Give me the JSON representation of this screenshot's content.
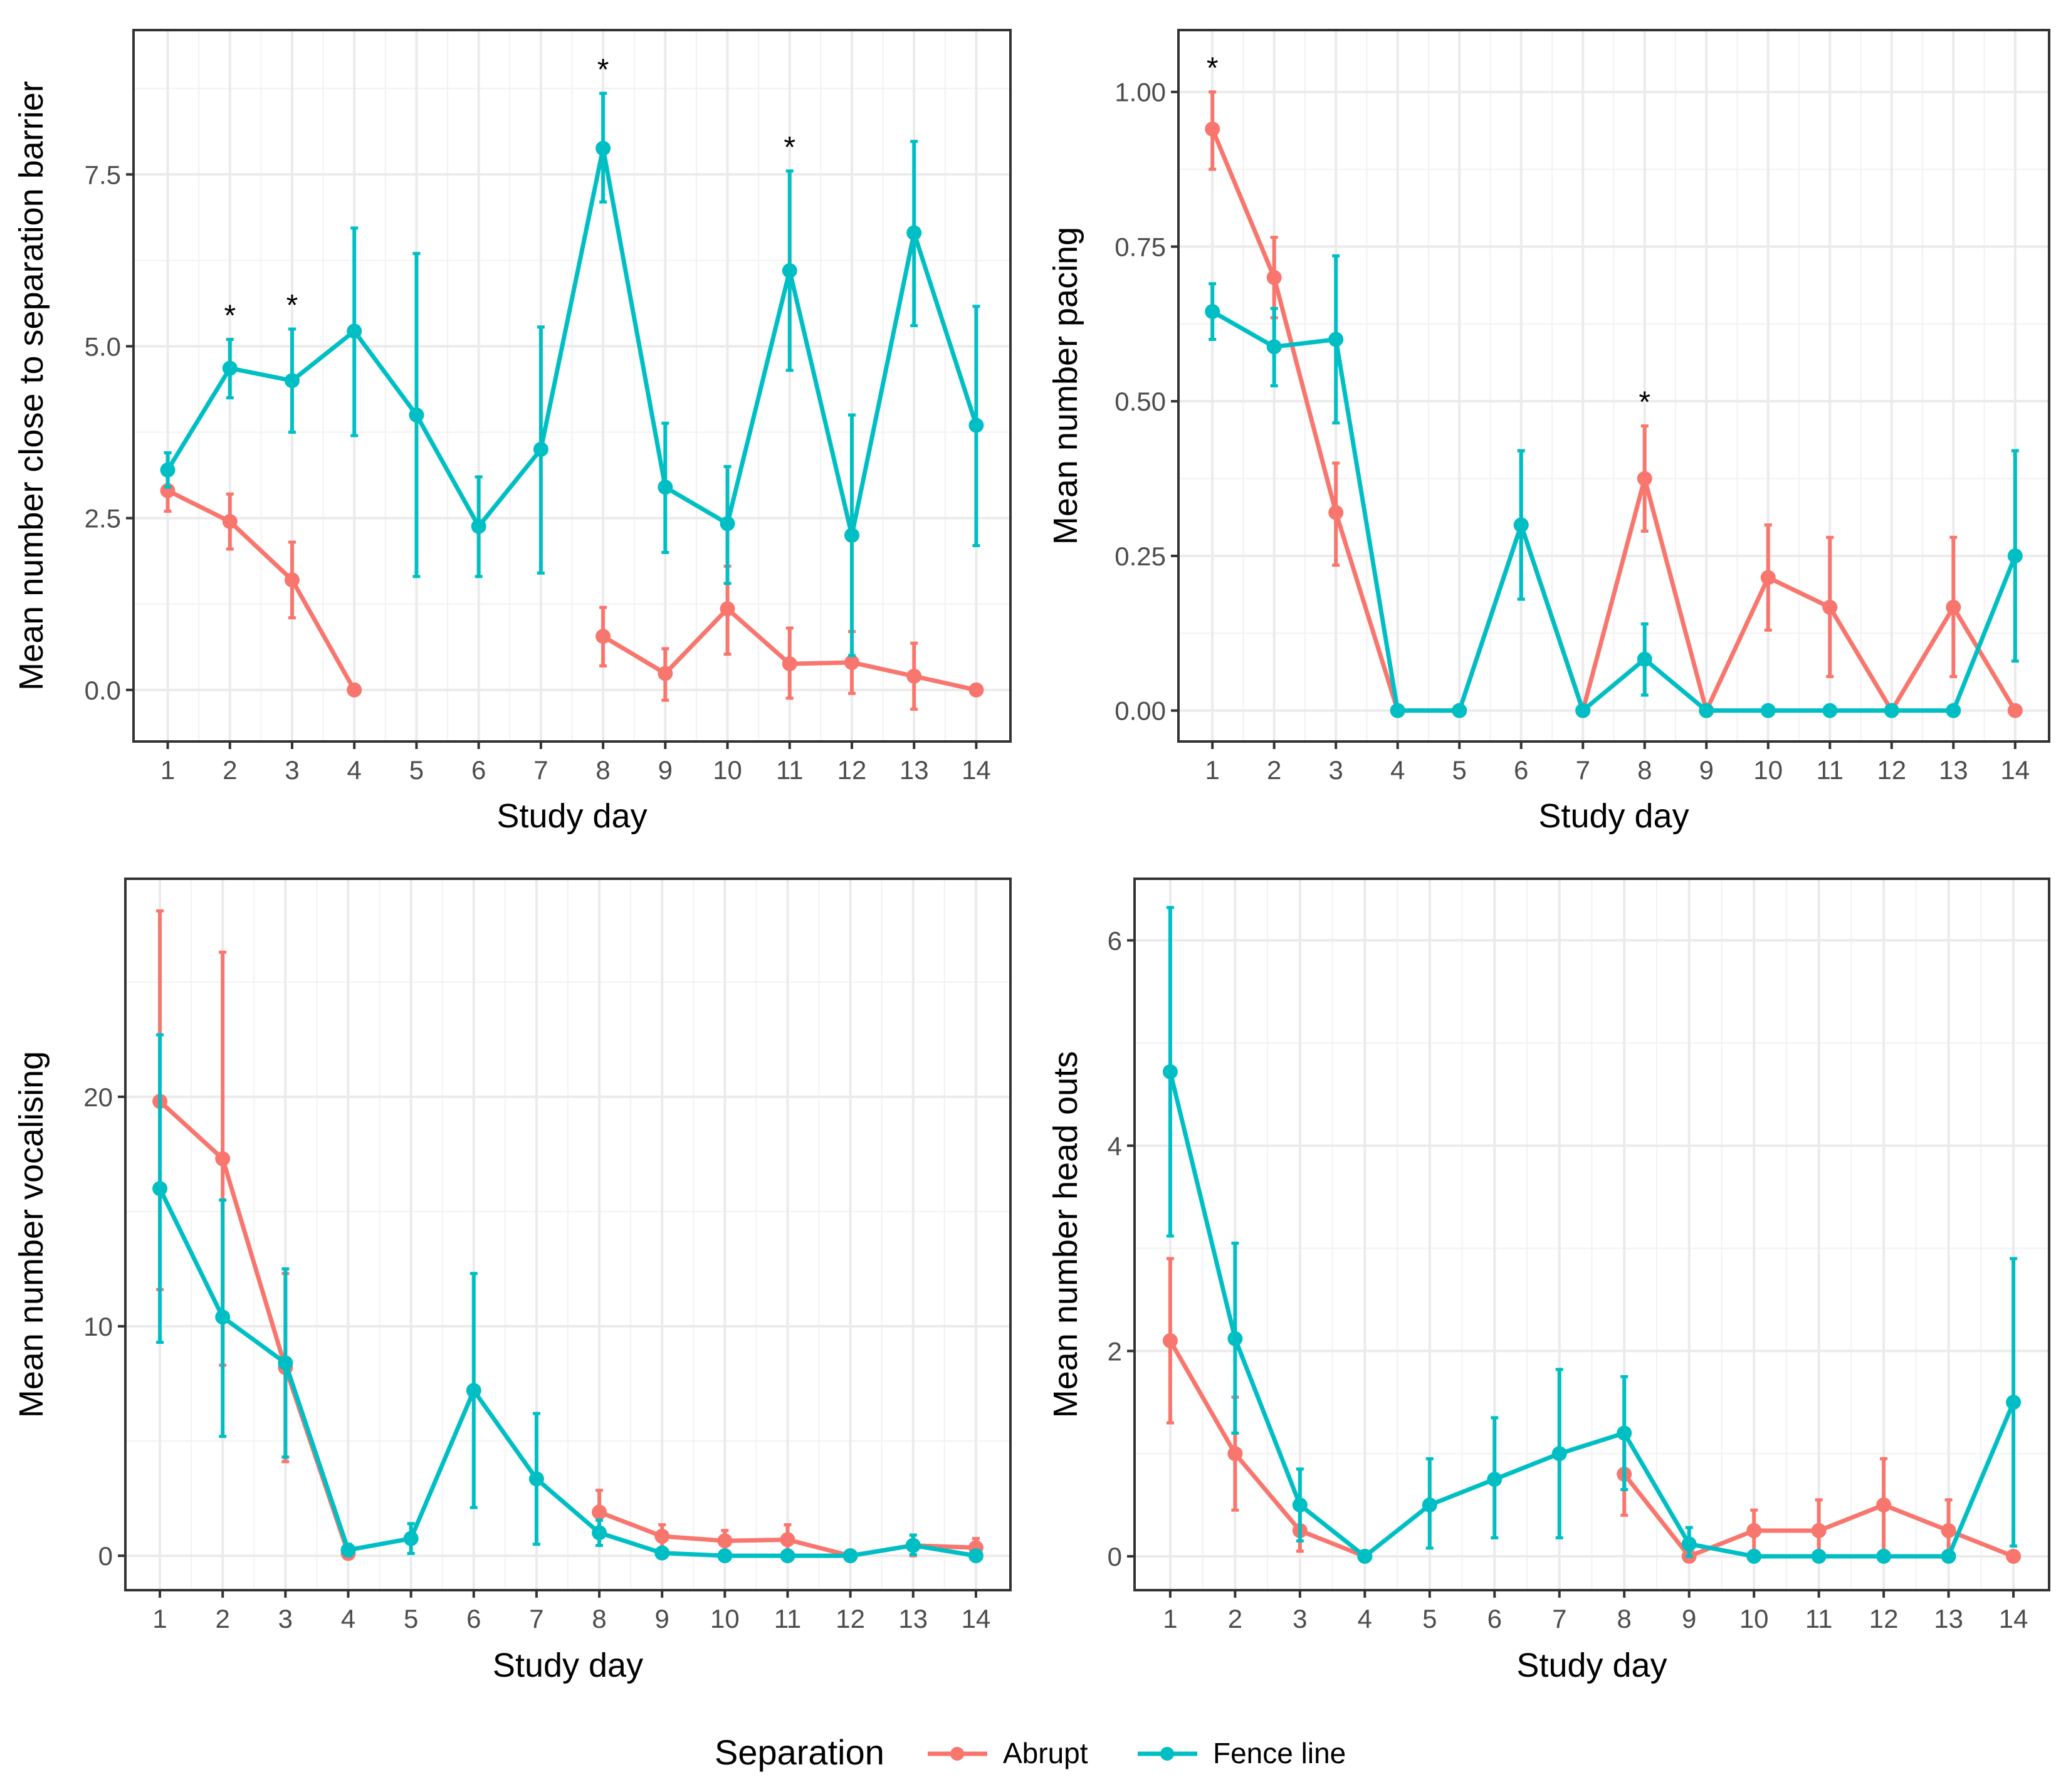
{
  "legend": {
    "title": "Separation",
    "items": [
      {
        "label": "Abrupt",
        "color": "#F8766D"
      },
      {
        "label": "Fence line",
        "color": "#00BFC4"
      }
    ]
  },
  "chart_data": [
    {
      "type": "line",
      "xlabel": "Study day",
      "ylabel": "Mean number close to separation barrier",
      "x": [
        1,
        2,
        3,
        4,
        5,
        6,
        7,
        8,
        9,
        10,
        11,
        12,
        13,
        14
      ],
      "xlim": [
        0.45,
        14.55
      ],
      "ylim": [
        -0.75,
        9.6
      ],
      "yticks": [
        0.0,
        2.5,
        5.0,
        7.5
      ],
      "ytick_labels": [
        "0.0",
        "2.5",
        "5.0",
        "7.5"
      ],
      "minor_yticks": [
        1.25,
        3.75,
        6.25,
        8.75
      ],
      "significance_days": [
        2,
        3,
        8,
        11
      ],
      "series": [
        {
          "name": "Abrupt",
          "color": "#F8766D",
          "values": [
            2.9,
            2.45,
            1.6,
            0.0,
            null,
            null,
            null,
            0.78,
            0.24,
            1.18,
            0.38,
            0.4,
            0.2,
            0.0
          ],
          "lower": [
            2.6,
            2.05,
            1.05,
            0.0,
            null,
            null,
            null,
            0.35,
            -0.15,
            0.52,
            -0.12,
            -0.05,
            -0.28,
            0.0
          ],
          "upper": [
            3.15,
            2.85,
            2.15,
            0.0,
            null,
            null,
            null,
            1.2,
            0.6,
            1.8,
            0.9,
            0.85,
            0.68,
            0.0
          ]
        },
        {
          "name": "Fence line",
          "color": "#00BFC4",
          "values": [
            3.2,
            4.68,
            4.5,
            5.22,
            4.0,
            2.38,
            3.5,
            7.88,
            2.95,
            2.42,
            6.1,
            2.25,
            6.65,
            3.85
          ],
          "lower": [
            2.95,
            4.25,
            3.75,
            3.7,
            1.65,
            1.65,
            1.7,
            7.1,
            2.0,
            1.55,
            4.65,
            0.5,
            5.3,
            2.1
          ],
          "upper": [
            3.45,
            5.1,
            5.25,
            6.72,
            6.35,
            3.1,
            5.28,
            8.68,
            3.88,
            3.25,
            7.55,
            4.0,
            7.98,
            5.58
          ]
        }
      ]
    },
    {
      "type": "line",
      "xlabel": "Study day",
      "ylabel": "Mean number pacing",
      "x": [
        1,
        2,
        3,
        4,
        5,
        6,
        7,
        8,
        9,
        10,
        11,
        12,
        13,
        14
      ],
      "xlim": [
        0.45,
        14.55
      ],
      "ylim": [
        -0.05,
        1.1
      ],
      "yticks": [
        0.0,
        0.25,
        0.5,
        0.75,
        1.0
      ],
      "ytick_labels": [
        "0.00",
        "0.25",
        "0.50",
        "0.75",
        "1.00"
      ],
      "minor_yticks": [
        0.125,
        0.375,
        0.625,
        0.875
      ],
      "significance_days": [
        1,
        8
      ],
      "series": [
        {
          "name": "Abrupt",
          "color": "#F8766D",
          "values": [
            0.94,
            0.7,
            0.32,
            0.0,
            0.0,
            0.3,
            0.0,
            0.375,
            0.0,
            0.215,
            0.167,
            0.0,
            0.167,
            0.0
          ],
          "lower": [
            0.875,
            0.635,
            0.235,
            0.0,
            0.0,
            0.18,
            0.0,
            0.29,
            0.0,
            0.13,
            0.055,
            0.0,
            0.055,
            0.0
          ],
          "upper": [
            1.0,
            0.765,
            0.4,
            0.0,
            0.0,
            0.42,
            0.0,
            0.46,
            0.0,
            0.3,
            0.28,
            0.0,
            0.28,
            0.0
          ]
        },
        {
          "name": "Fence line",
          "color": "#00BFC4",
          "values": [
            0.645,
            0.588,
            0.6,
            0.0,
            0.0,
            0.3,
            0.0,
            0.083,
            0.0,
            0.0,
            0.0,
            0.0,
            0.0,
            0.25
          ],
          "lower": [
            0.6,
            0.525,
            0.465,
            0.0,
            0.0,
            0.18,
            0.0,
            0.025,
            0.0,
            0.0,
            0.0,
            0.0,
            0.0,
            0.08
          ],
          "upper": [
            0.69,
            0.65,
            0.735,
            0.0,
            0.0,
            0.42,
            0.0,
            0.14,
            0.0,
            0.0,
            0.0,
            0.0,
            0.0,
            0.42
          ]
        }
      ]
    },
    {
      "type": "line",
      "xlabel": "Study day",
      "ylabel": "Mean number vocalising",
      "x": [
        1,
        2,
        3,
        4,
        5,
        6,
        7,
        8,
        9,
        10,
        11,
        12,
        13,
        14
      ],
      "xlim": [
        0.45,
        14.55
      ],
      "ylim": [
        -1.5,
        29.5
      ],
      "yticks": [
        0,
        10,
        20
      ],
      "ytick_labels": [
        "0",
        "10",
        "20"
      ],
      "minor_yticks": [
        5,
        15,
        25
      ],
      "significance_days": [],
      "series": [
        {
          "name": "Abrupt",
          "color": "#F8766D",
          "values": [
            19.8,
            17.3,
            8.2,
            0.1,
            null,
            null,
            null,
            1.9,
            0.85,
            0.65,
            0.7,
            0.0,
            0.45,
            0.35
          ],
          "lower": [
            11.6,
            8.3,
            4.1,
            0.0,
            null,
            null,
            null,
            1.0,
            0.35,
            0.2,
            0.1,
            0.0,
            0.0,
            0.0
          ],
          "upper": [
            28.1,
            26.3,
            12.3,
            0.25,
            null,
            null,
            null,
            2.85,
            1.35,
            1.1,
            1.35,
            0.0,
            0.9,
            0.75
          ]
        },
        {
          "name": "Fence line",
          "color": "#00BFC4",
          "values": [
            16.0,
            10.4,
            8.4,
            0.25,
            0.75,
            7.2,
            3.35,
            1.0,
            0.12,
            0.0,
            0.0,
            0.0,
            0.45,
            0.0
          ],
          "lower": [
            9.3,
            5.2,
            4.3,
            0.0,
            0.1,
            2.1,
            0.5,
            0.45,
            0.0,
            0.0,
            0.0,
            0.0,
            0.05,
            0.0
          ],
          "upper": [
            22.7,
            15.5,
            12.5,
            0.5,
            1.4,
            12.3,
            6.2,
            1.55,
            0.25,
            0.0,
            0.0,
            0.0,
            0.9,
            0.0
          ]
        }
      ]
    },
    {
      "type": "line",
      "xlabel": "Study day",
      "ylabel": "Mean number head outs",
      "x": [
        1,
        2,
        3,
        4,
        5,
        6,
        7,
        8,
        9,
        10,
        11,
        12,
        13,
        14
      ],
      "xlim": [
        0.45,
        14.55
      ],
      "ylim": [
        -0.33,
        6.6
      ],
      "yticks": [
        0,
        2,
        4,
        6
      ],
      "ytick_labels": [
        "0",
        "2",
        "4",
        "6"
      ],
      "minor_yticks": [
        1,
        3,
        5
      ],
      "significance_days": [],
      "series": [
        {
          "name": "Abrupt",
          "color": "#F8766D",
          "values": [
            2.1,
            1.0,
            0.25,
            0.0,
            null,
            null,
            null,
            0.8,
            0.0,
            0.25,
            0.25,
            0.5,
            0.25,
            0.0
          ],
          "lower": [
            1.3,
            0.45,
            0.05,
            0.0,
            null,
            null,
            null,
            0.4,
            0.0,
            0.05,
            0.0,
            0.05,
            0.0,
            0.0
          ],
          "upper": [
            2.9,
            1.55,
            0.5,
            0.0,
            null,
            null,
            null,
            1.2,
            0.0,
            0.45,
            0.55,
            0.95,
            0.55,
            0.0
          ]
        },
        {
          "name": "Fence line",
          "color": "#00BFC4",
          "values": [
            4.72,
            2.12,
            0.5,
            0.0,
            0.5,
            0.75,
            1.0,
            1.2,
            0.12,
            0.0,
            0.0,
            0.0,
            0.0,
            1.5
          ],
          "lower": [
            3.12,
            1.2,
            0.15,
            0.0,
            0.08,
            0.18,
            0.18,
            0.65,
            0.0,
            0.0,
            0.0,
            0.0,
            0.0,
            0.1
          ],
          "upper": [
            6.32,
            3.05,
            0.85,
            0.0,
            0.95,
            1.35,
            1.82,
            1.75,
            0.28,
            0.0,
            0.0,
            0.0,
            0.0,
            2.9
          ]
        }
      ]
    }
  ]
}
